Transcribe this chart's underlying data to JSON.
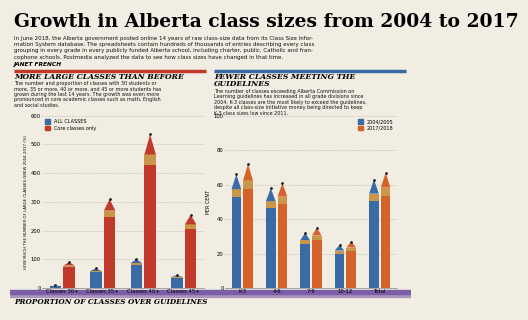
{
  "title": "Growth in Alberta class sizes from 2004 to 2017",
  "subtitle_lines": [
    "In June 2018, the Alberta government posted online 14 years of raw class-size data from its Class Size Infor-",
    "mation System database. The spreadsheets contain hundreds of thousands of entries describing every class",
    "grouping in every grade in every publicly funded Alberta school, including charter, public, Catholic and fran-",
    "cophone schools. Postmedia analyzed the data to see how class sizes have changed in that time."
  ],
  "author": "JANET FRENCH",
  "left_section_title": "MORE LARGE CLASSES THAN BEFORE",
  "left_section_text": [
    "The number and proportion of classes with 30 students or",
    "more, 35 or more, 40 or more, and 45 or more students has",
    "grown during the last 14 years. The growth was even more",
    "pronounced in core academic classes such as math, English",
    "and social studies."
  ],
  "right_section_title_line1": "FEWER CLASSES MEETING THE",
  "right_section_title_line2": "GUIDELINES",
  "right_section_text": [
    "The number of classes exceeding Alberta Commission on",
    "Learning guidelines has increased in all grade divisions since",
    "2004. K-3 classes are the most likely to exceed the guidelines,",
    "despite all class-size initiative money being directed to keep",
    "K-3 class sizes low since 2011."
  ],
  "bottom_title": "PROPORTION OF CLASSES OVER GUIDELINES",
  "bar_categories_left": [
    "Classes 30+",
    "Classes 35+",
    "Classes 40+",
    "Classes 45+"
  ],
  "bar_all_classes": [
    10,
    68,
    100,
    45
  ],
  "bar_core_classes": [
    90,
    310,
    535,
    255
  ],
  "left_ylabel": "HOW MUCH THE NUMBER OF LARGE CLASSES GREW 2004-2017 (%)",
  "left_yticks": [
    0,
    100,
    200,
    300,
    400,
    500,
    600
  ],
  "bar_categories_right": [
    "K-3",
    "4-6",
    "7-9",
    "10-12",
    "Total"
  ],
  "bar_2004": [
    66,
    58,
    32,
    25,
    63
  ],
  "bar_2017": [
    72,
    61,
    35,
    27,
    67
  ],
  "right_ylabel": "PER CENT",
  "right_yticks": [
    0,
    20,
    40,
    60,
    80,
    100
  ],
  "color_blue": "#3b6ba5",
  "color_red": "#c0392b",
  "color_orange": "#d4622a",
  "color_bg": "#f2ede3",
  "color_red_line": "#c0392b",
  "color_blue_line": "#3b6ba5",
  "color_purple_line": "#7b5ea7",
  "color_wood": "#c9964a",
  "color_tip_blue": "#5a8fc8",
  "color_tip_orange": "#e07840"
}
